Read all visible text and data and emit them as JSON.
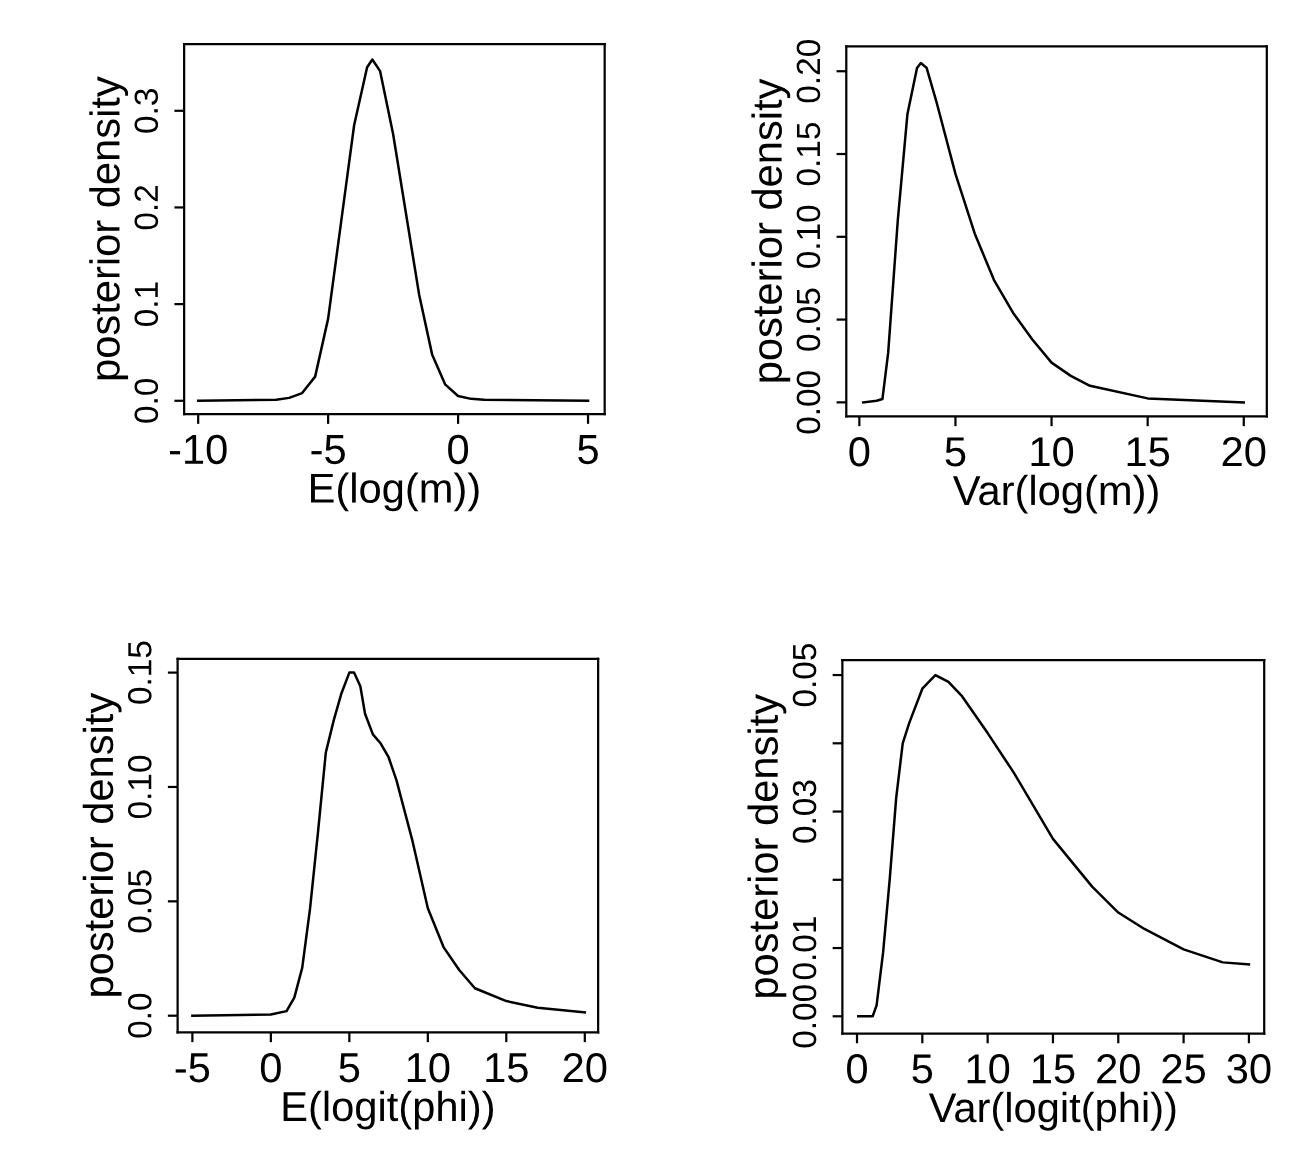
{
  "chart_data": [
    {
      "type": "line",
      "xlabel": "E(log(m))",
      "ylabel": "posterior density",
      "xlim": [
        -10.54,
        5.64
      ],
      "ylim": [
        -0.0138,
        0.369
      ],
      "xticks": [
        -10,
        -5,
        0,
        5
      ],
      "yticks": [
        {
          "value": 0,
          "label": "0.0"
        },
        0.1,
        0.2,
        0.3
      ],
      "series": [
        {
          "color": "#000000",
          "x": [
            -10,
            -7,
            -6.5,
            -6,
            -5.5,
            -5,
            -4.5,
            -4,
            -3.5,
            -3.3,
            -3,
            -2.5,
            -2,
            -1.5,
            -1,
            -0.5,
            0,
            0.5,
            1,
            5
          ],
          "values": [
            0,
            0.001,
            0.003,
            0.008,
            0.025,
            0.085,
            0.185,
            0.285,
            0.345,
            0.353,
            0.341,
            0.276,
            0.193,
            0.11,
            0.048,
            0.017,
            0.005,
            0.002,
            0.001,
            0
          ]
        }
      ]
    },
    {
      "type": "line",
      "xlabel": "Var(log(m))",
      "ylabel": "posterior density",
      "xlim": [
        -0.68,
        21.2
      ],
      "ylim": [
        -0.0085,
        0.215
      ],
      "xticks": [
        0,
        5,
        10,
        15,
        20
      ],
      "yticks": [
        {
          "value": 0,
          "label": "0.00"
        },
        {
          "value": 0.05,
          "label": "0.05"
        },
        {
          "value": 0.1,
          "label": "0.10"
        },
        {
          "value": 0.15,
          "label": "0.15"
        },
        {
          "value": 0.2,
          "label": "0.20"
        }
      ],
      "series": [
        {
          "color": "#000000",
          "x": [
            0.2,
            0.9,
            1.2,
            1.5,
            2,
            2.5,
            3,
            3.2,
            3.5,
            4,
            5,
            6,
            7,
            8,
            9,
            10,
            11,
            12,
            15,
            20
          ],
          "values": [
            0,
            0.001,
            0.002,
            0.03,
            0.11,
            0.174,
            0.202,
            0.205,
            0.202,
            0.182,
            0.138,
            0.102,
            0.074,
            0.054,
            0.038,
            0.024,
            0.016,
            0.01,
            0.0024,
            0
          ]
        }
      ]
    },
    {
      "type": "line",
      "xlabel": "E(logit(phi))",
      "ylabel": "posterior density",
      "xlim": [
        -5.94,
        20.85
      ],
      "ylim": [
        -0.0073,
        0.156
      ],
      "xticks": [
        -5,
        0,
        5,
        10,
        15,
        20
      ],
      "yticks": [
        {
          "value": 0,
          "label": "0.0"
        },
        0.05,
        {
          "value": 0.1,
          "label": "0.10"
        },
        0.15
      ],
      "series": [
        {
          "color": "#000000",
          "x": [
            -5,
            0,
            1,
            1.5,
            2,
            2.5,
            3,
            3.5,
            4,
            4.5,
            5,
            5.3,
            5.7,
            6,
            6.5,
            7,
            7.5,
            8,
            9,
            10,
            11,
            12,
            13,
            15,
            17,
            20
          ],
          "values": [
            0,
            0.0005,
            0.002,
            0.008,
            0.021,
            0.047,
            0.08,
            0.115,
            0.129,
            0.141,
            0.15,
            0.15,
            0.144,
            0.132,
            0.123,
            0.119,
            0.113,
            0.103,
            0.077,
            0.047,
            0.03,
            0.02,
            0.012,
            0.0064,
            0.0035,
            0.0015
          ]
        }
      ]
    },
    {
      "type": "line",
      "xlabel": "Var(logit(phi))",
      "ylabel": "posterior density",
      "xlim": [
        -1.12,
        31.17
      ],
      "ylim": [
        -0.00253,
        0.0522
      ],
      "xticks": [
        0,
        5,
        10,
        15,
        20,
        25,
        30
      ],
      "yticks": [
        {
          "value": 0,
          "label": "0.00"
        },
        0.01,
        {
          "value": 0.02,
          "label": null
        },
        0.03,
        {
          "value": 0.04,
          "label": null
        },
        0.05
      ],
      "series": [
        {
          "color": "#000000",
          "x": [
            0.1,
            1.2,
            1.5,
            2,
            2.5,
            3,
            3.5,
            4,
            5,
            6,
            7,
            8,
            10,
            12,
            15,
            18,
            20,
            22,
            25,
            28,
            30
          ],
          "values": [
            0,
            0,
            0.0016,
            0.0094,
            0.02,
            0.032,
            0.04,
            0.043,
            0.048,
            0.05,
            0.049,
            0.047,
            0.0415,
            0.0357,
            0.026,
            0.019,
            0.0152,
            0.0128,
            0.0098,
            0.0079,
            0.0076
          ]
        }
      ]
    }
  ]
}
